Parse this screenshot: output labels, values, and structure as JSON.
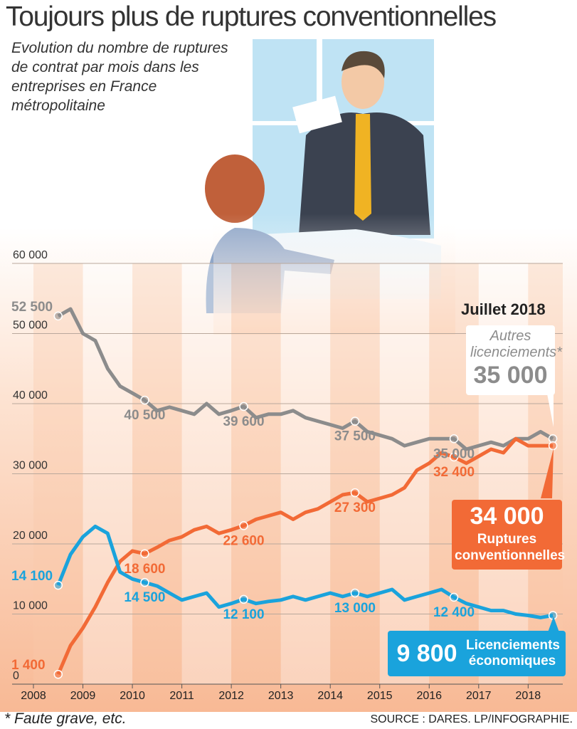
{
  "chart_data": {
    "type": "line",
    "title": "Toujours plus de ruptures conventionnelles",
    "subtitle": "Evolution du nombre de ruptures de contrat par mois dans les entreprises en France métropolitaine",
    "annotation": "Juillet 2018",
    "footnote": "* Faute grave, etc.",
    "source": "SOURCE : DARES. LP/INFOGRAPHIE.",
    "x": [
      2008.5,
      2008.75,
      2009,
      2009.25,
      2009.5,
      2009.75,
      2010,
      2010.25,
      2010.5,
      2010.75,
      2011,
      2011.25,
      2011.5,
      2011.75,
      2012,
      2012.25,
      2012.5,
      2012.75,
      2013,
      2013.25,
      2013.5,
      2013.75,
      2014,
      2014.25,
      2014.5,
      2014.75,
      2015,
      2015.25,
      2015.5,
      2015.75,
      2016,
      2016.25,
      2016.5,
      2016.75,
      2017,
      2017.25,
      2017.5,
      2017.75,
      2018,
      2018.25,
      2018.5
    ],
    "xlim": [
      2008,
      2018.7
    ],
    "xticks": [
      2008,
      2009,
      2010,
      2011,
      2012,
      2013,
      2014,
      2015,
      2016,
      2017,
      2018
    ],
    "ylim": [
      0,
      60000
    ],
    "yticks": [
      0,
      {
        "value": 10000,
        "label": "10 000"
      },
      {
        "value": 20000,
        "label": "20 000"
      },
      {
        "value": 30000,
        "label": "30 000"
      },
      {
        "value": 40000,
        "label": "40 000"
      },
      {
        "value": 50000,
        "label": "50 000"
      },
      {
        "value": 60000,
        "label": "60 000"
      }
    ],
    "grid": true,
    "series": [
      {
        "name": "Autres licenciements*",
        "color": "#8c8c8c",
        "values": [
          52500,
          53500,
          50000,
          49000,
          45000,
          42500,
          41500,
          40500,
          39000,
          39500,
          39000,
          38500,
          40000,
          38500,
          39000,
          39600,
          38000,
          38500,
          38500,
          39000,
          38000,
          37500,
          37000,
          36500,
          37500,
          36000,
          35500,
          35000,
          34000,
          34500,
          35000,
          35000,
          35000,
          33500,
          34000,
          34500,
          34000,
          35000,
          35000,
          36000,
          35000
        ],
        "value_labels": [
          "52 500",
          null,
          null,
          null,
          null,
          null,
          null,
          "40 500",
          null,
          null,
          null,
          null,
          null,
          null,
          null,
          "39 600",
          null,
          null,
          null,
          null,
          null,
          null,
          null,
          null,
          "37 500",
          null,
          null,
          null,
          null,
          null,
          null,
          null,
          "35 000",
          null,
          null,
          null,
          null,
          null,
          null,
          null,
          "35 000"
        ]
      },
      {
        "name": "Ruptures conventionnelles",
        "color": "#f26a36",
        "values": [
          1400,
          5500,
          8000,
          11000,
          14500,
          17500,
          19000,
          18600,
          19500,
          20500,
          21000,
          22000,
          22500,
          21500,
          22000,
          22600,
          23500,
          24000,
          24500,
          23500,
          24500,
          25000,
          26000,
          27000,
          27300,
          26000,
          26500,
          27000,
          28000,
          30500,
          31500,
          33000,
          32400,
          31500,
          32500,
          33500,
          33000,
          35000,
          34000,
          34000,
          34000
        ],
        "value_labels": [
          "1 400",
          null,
          null,
          null,
          null,
          null,
          null,
          "18 600",
          null,
          null,
          null,
          null,
          null,
          null,
          null,
          "22 600",
          null,
          null,
          null,
          null,
          null,
          null,
          null,
          null,
          "27 300",
          null,
          null,
          null,
          null,
          null,
          null,
          null,
          "32 400",
          null,
          null,
          null,
          null,
          null,
          null,
          null,
          "34 000"
        ]
      },
      {
        "name": "Licenciements économiques",
        "color": "#1aa3dc",
        "values": [
          14100,
          18500,
          21000,
          22500,
          21500,
          16000,
          15000,
          14500,
          14000,
          13000,
          12000,
          12500,
          13000,
          11000,
          11500,
          12100,
          11500,
          11800,
          12000,
          12500,
          12000,
          12500,
          13000,
          12500,
          13000,
          12500,
          13000,
          13500,
          12000,
          12500,
          13000,
          13500,
          12400,
          11500,
          11000,
          10500,
          10500,
          10000,
          9800,
          9500,
          9800
        ],
        "value_labels": [
          "14 100",
          null,
          null,
          null,
          null,
          null,
          null,
          "14 500",
          null,
          null,
          null,
          null,
          null,
          null,
          null,
          "12 100",
          null,
          null,
          null,
          null,
          null,
          null,
          null,
          null,
          "13 000",
          null,
          null,
          null,
          null,
          null,
          null,
          null,
          "12 400",
          null,
          null,
          null,
          null,
          null,
          null,
          null,
          "9 800"
        ]
      }
    ]
  }
}
